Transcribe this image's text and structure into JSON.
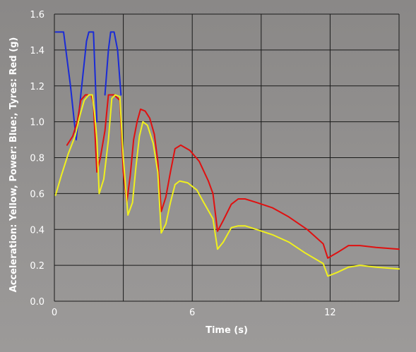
{
  "chart_data": {
    "type": "line",
    "title": "",
    "xlabel": "Time (s)",
    "ylabel": "Acceleration: Yellow, Power: Blue:, Tyres: Red (g)",
    "xlim": [
      0,
      15
    ],
    "ylim": [
      0,
      1.6
    ],
    "x_ticks": [
      0,
      3,
      6,
      9,
      12,
      15
    ],
    "x_tick_labels": [
      "0",
      "",
      "6",
      "",
      "12",
      ""
    ],
    "y_ticks": [
      0.0,
      0.2,
      0.4,
      0.6,
      0.8,
      1.0,
      1.2,
      1.4,
      1.6
    ],
    "y_tick_labels": [
      "0.0",
      "0.2",
      "0.4",
      "0.6",
      "0.8",
      "1.0",
      "1.2",
      "1.4",
      "1.6"
    ],
    "grid": true,
    "series": [
      {
        "key": "power",
        "color": "#1a2bd6",
        "points": [
          [
            0.05,
            1.5
          ],
          [
            0.4,
            1.5
          ],
          [
            0.7,
            1.2
          ],
          [
            0.95,
            0.9
          ],
          [
            1.15,
            1.15
          ],
          [
            1.4,
            1.45
          ],
          [
            1.5,
            1.5
          ],
          [
            1.7,
            1.5
          ],
          [
            1.85,
            1.0
          ]
        ]
      },
      {
        "key": "power",
        "color": "#1a2bd6",
        "points": [
          [
            2.2,
            1.15
          ],
          [
            2.35,
            1.4
          ],
          [
            2.45,
            1.5
          ],
          [
            2.6,
            1.5
          ],
          [
            2.75,
            1.4
          ],
          [
            2.9,
            1.15
          ]
        ]
      },
      {
        "key": "tyres",
        "color": "#e01010",
        "points": [
          [
            0.55,
            0.87
          ],
          [
            0.8,
            0.92
          ],
          [
            1.0,
            1.0
          ],
          [
            1.15,
            1.12
          ],
          [
            1.35,
            1.15
          ],
          [
            1.6,
            1.15
          ],
          [
            1.7,
            1.1
          ],
          [
            1.85,
            0.72
          ],
          [
            2.0,
            0.8
          ],
          [
            2.2,
            0.95
          ],
          [
            2.35,
            1.15
          ],
          [
            2.6,
            1.15
          ],
          [
            2.85,
            1.12
          ],
          [
            3.0,
            0.72
          ],
          [
            3.15,
            0.55
          ],
          [
            3.3,
            0.7
          ],
          [
            3.45,
            0.9
          ],
          [
            3.6,
            1.0
          ],
          [
            3.75,
            1.07
          ],
          [
            3.95,
            1.06
          ],
          [
            4.15,
            1.02
          ],
          [
            4.35,
            0.93
          ],
          [
            4.5,
            0.78
          ],
          [
            4.65,
            0.5
          ],
          [
            4.85,
            0.58
          ],
          [
            5.05,
            0.72
          ],
          [
            5.25,
            0.85
          ],
          [
            5.5,
            0.87
          ],
          [
            5.9,
            0.84
          ],
          [
            6.3,
            0.78
          ],
          [
            6.7,
            0.67
          ],
          [
            6.9,
            0.6
          ],
          [
            7.1,
            0.39
          ],
          [
            7.35,
            0.45
          ],
          [
            7.7,
            0.54
          ],
          [
            8.0,
            0.57
          ],
          [
            8.3,
            0.57
          ],
          [
            8.8,
            0.55
          ],
          [
            9.5,
            0.52
          ],
          [
            10.2,
            0.47
          ],
          [
            11.0,
            0.4
          ],
          [
            11.7,
            0.32
          ],
          [
            11.9,
            0.24
          ],
          [
            12.3,
            0.27
          ],
          [
            12.8,
            0.31
          ],
          [
            13.3,
            0.31
          ],
          [
            14.0,
            0.3
          ],
          [
            15.0,
            0.29
          ]
        ]
      },
      {
        "key": "acceleration",
        "color": "#f0f01e",
        "points": [
          [
            0.05,
            0.59
          ],
          [
            0.3,
            0.7
          ],
          [
            0.6,
            0.82
          ],
          [
            0.9,
            0.92
          ],
          [
            1.1,
            1.03
          ],
          [
            1.3,
            1.12
          ],
          [
            1.5,
            1.15
          ],
          [
            1.65,
            1.15
          ],
          [
            1.75,
            1.05
          ],
          [
            1.85,
            0.9
          ],
          [
            1.95,
            0.6
          ],
          [
            2.15,
            0.68
          ],
          [
            2.35,
            0.9
          ],
          [
            2.5,
            1.13
          ],
          [
            2.65,
            1.15
          ],
          [
            2.85,
            1.14
          ],
          [
            3.0,
            0.8
          ],
          [
            3.2,
            0.48
          ],
          [
            3.4,
            0.55
          ],
          [
            3.55,
            0.75
          ],
          [
            3.7,
            0.92
          ],
          [
            3.85,
            1.0
          ],
          [
            4.05,
            0.98
          ],
          [
            4.3,
            0.88
          ],
          [
            4.5,
            0.72
          ],
          [
            4.65,
            0.38
          ],
          [
            4.85,
            0.43
          ],
          [
            5.05,
            0.55
          ],
          [
            5.25,
            0.65
          ],
          [
            5.45,
            0.67
          ],
          [
            5.8,
            0.66
          ],
          [
            6.2,
            0.62
          ],
          [
            6.5,
            0.55
          ],
          [
            6.9,
            0.46
          ],
          [
            7.1,
            0.29
          ],
          [
            7.35,
            0.33
          ],
          [
            7.7,
            0.41
          ],
          [
            8.0,
            0.42
          ],
          [
            8.3,
            0.42
          ],
          [
            8.8,
            0.4
          ],
          [
            9.5,
            0.37
          ],
          [
            10.2,
            0.33
          ],
          [
            10.9,
            0.27
          ],
          [
            11.7,
            0.21
          ],
          [
            11.9,
            0.14
          ],
          [
            12.3,
            0.16
          ],
          [
            12.8,
            0.19
          ],
          [
            13.3,
            0.2
          ],
          [
            14.0,
            0.19
          ],
          [
            15.0,
            0.18
          ]
        ]
      }
    ]
  }
}
